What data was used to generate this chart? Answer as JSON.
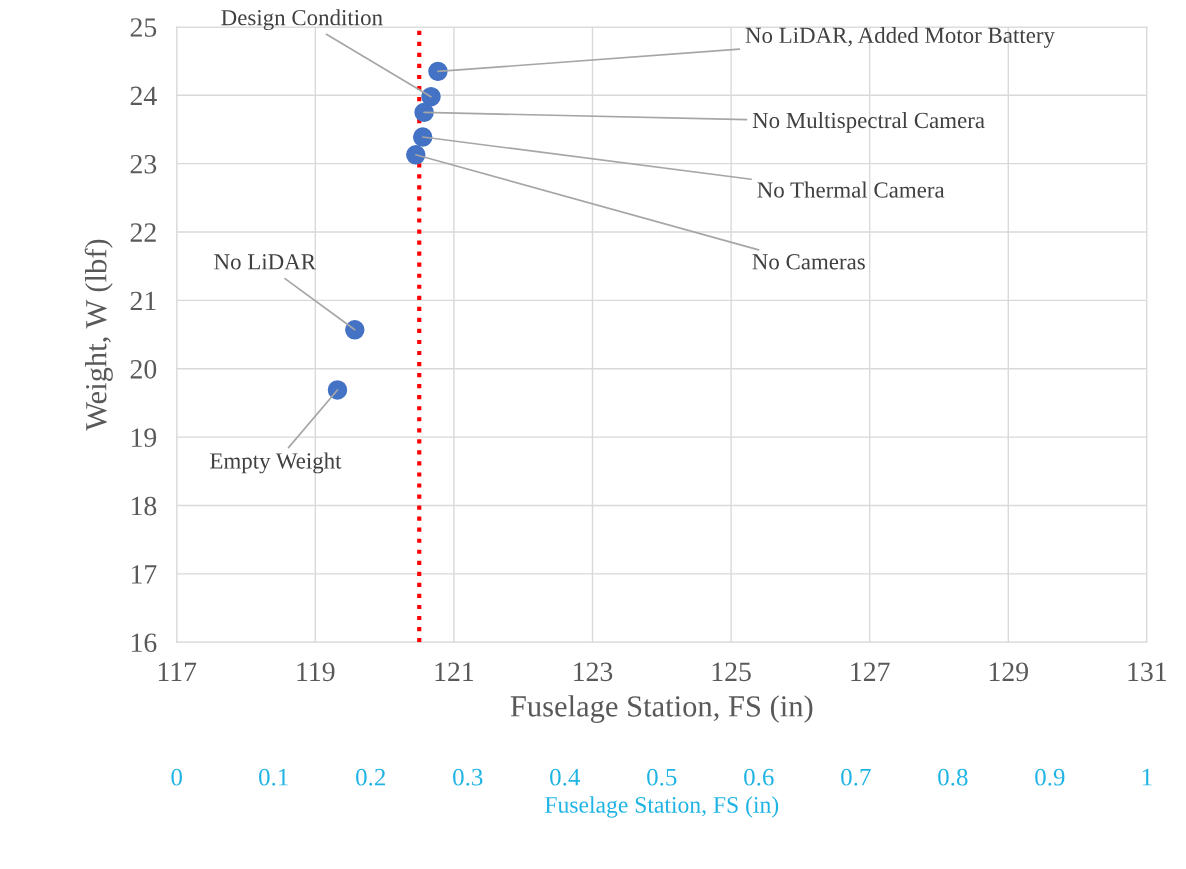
{
  "chart_data": {
    "type": "scatter",
    "xlabel": "Fuselage Station, FS (in)",
    "ylabel": "Weight, W (lbf)",
    "x2label": "Fuselage Station, FS (in)",
    "x": [
      120.77,
      120.67,
      120.57,
      120.55,
      120.45,
      119.57,
      119.32
    ],
    "series": [
      {
        "color": "#4472c4",
        "values": [
          24.35,
          23.98,
          23.75,
          23.39,
          23.13,
          20.57,
          19.69
        ]
      }
    ],
    "xlim": [
      117,
      131
    ],
    "xticks": [
      117,
      119,
      121,
      123,
      125,
      127,
      129,
      131
    ],
    "ylim": [
      16,
      25
    ],
    "yticks": [
      16,
      17,
      18,
      19,
      20,
      21,
      22,
      23,
      24,
      25
    ],
    "x2lim": [
      0,
      1
    ],
    "x2ticks": [
      0,
      0.1,
      0.2,
      0.3,
      0.4,
      0.5,
      0.6,
      0.7,
      0.8,
      0.9,
      1
    ],
    "ref_lines": [
      {
        "axis": "x",
        "value": 120.5,
        "color": "#ff0000",
        "line_style": "dotted"
      }
    ],
    "annotations": [
      {
        "text": "No LiDAR, Added Motor Battery",
        "x": 120.77,
        "y": 24.35
      },
      {
        "text": "Design Condition",
        "x": 120.67,
        "y": 23.98
      },
      {
        "text": "No Multispectral Camera",
        "x": 120.57,
        "y": 23.75
      },
      {
        "text": "No Thermal Camera",
        "x": 120.55,
        "y": 23.39
      },
      {
        "text": "No Cameras",
        "x": 120.45,
        "y": 23.13
      },
      {
        "text": "No LiDAR",
        "x": 119.57,
        "y": 20.57
      },
      {
        "text": "Empty Weight",
        "x": 119.32,
        "y": 19.69
      }
    ],
    "grid": true,
    "marker": "circle"
  }
}
